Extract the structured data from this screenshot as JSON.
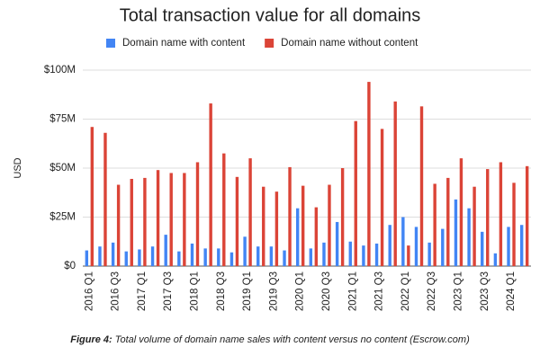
{
  "chart_data": {
    "type": "bar",
    "title": "Total transaction value for all domains",
    "y_label": "USD",
    "categories": [
      "2016 Q1",
      null,
      "2016 Q3",
      null,
      "2017 Q1",
      null,
      "2017 Q3",
      null,
      "2018 Q1",
      null,
      "2018 Q3",
      null,
      "2019 Q1",
      null,
      "2019 Q3",
      null,
      "2020 Q1",
      null,
      "2020 Q3",
      null,
      "2021 Q1",
      null,
      "2021 Q3",
      null,
      "2022 Q1",
      null,
      "2022 Q3",
      null,
      "2023 Q1",
      null,
      "2023 Q3",
      null,
      "2024 Q1",
      null
    ],
    "series": [
      {
        "name": "Domain name with content",
        "color": "#4285f4",
        "values": [
          8,
          10,
          12,
          7.5,
          8.5,
          10,
          16,
          7.5,
          11.5,
          9,
          9,
          7,
          15,
          10,
          10,
          8,
          29.5,
          9,
          12,
          22.5,
          12.5,
          10.5,
          11.5,
          21,
          25,
          20,
          12,
          19,
          34,
          29.5,
          17.5,
          6.5,
          20,
          21
        ]
      },
      {
        "name": "Domain name without content",
        "color": "#db4437",
        "values": [
          71,
          68,
          41.5,
          44.5,
          45,
          49,
          47.5,
          47.5,
          53,
          83,
          57.5,
          45.5,
          55,
          40.5,
          38,
          50.5,
          41,
          30,
          41.5,
          50,
          74,
          94,
          70,
          84,
          10.5,
          81.5,
          42,
          45,
          55,
          40.5,
          49.5,
          53,
          42.5,
          51
        ]
      }
    ],
    "ylim": [
      0,
      100
    ],
    "yticks": [
      {
        "value": 0,
        "label": "$0"
      },
      {
        "value": 25,
        "label": "$25M"
      },
      {
        "value": 50,
        "label": "$50M"
      },
      {
        "value": 75,
        "label": "$75M"
      },
      {
        "value": 100,
        "label": "$100M"
      }
    ],
    "grid": true,
    "legend": "top"
  },
  "caption": {
    "label": "Figure 4:",
    "text": "Total volume of domain name sales with content versus no content (Escrow.com)"
  }
}
